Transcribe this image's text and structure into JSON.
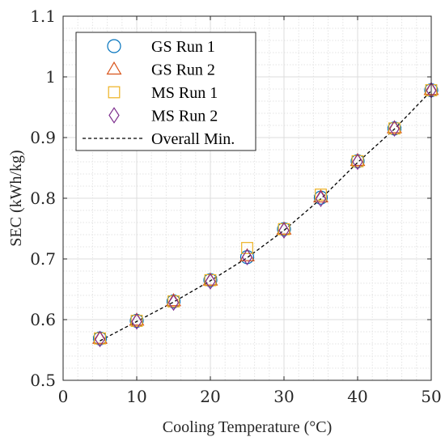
{
  "chart_data": {
    "type": "scatter",
    "xlabel": "Cooling Temperature (°C)",
    "ylabel": "SEC (kWh/kg)",
    "xlim": [
      0,
      50
    ],
    "ylim": [
      0.5,
      1.1
    ],
    "xticks": [
      "0",
      "10",
      "20",
      "30",
      "40",
      "50"
    ],
    "yticks": [
      "0.5",
      "0.6",
      "0.7",
      "0.8",
      "0.9",
      "1",
      "1.1"
    ],
    "grid": "on (major and minor)",
    "legend_position": "top-left",
    "x": [
      5,
      10,
      15,
      20,
      25,
      30,
      35,
      40,
      45,
      50
    ],
    "series": [
      {
        "name": "GS Run 1",
        "marker": "circle",
        "color": "#0072BD",
        "values": [
          0.569,
          0.598,
          0.63,
          0.665,
          0.703,
          0.749,
          0.801,
          0.861,
          0.915,
          0.978
        ]
      },
      {
        "name": "GS Run 2",
        "marker": "triangle",
        "color": "#D95319",
        "values": [
          0.569,
          0.599,
          0.631,
          0.665,
          0.705,
          0.749,
          0.802,
          0.862,
          0.916,
          0.979
        ]
      },
      {
        "name": "MS Run 1",
        "marker": "square",
        "color": "#EDB120",
        "values": [
          0.569,
          0.598,
          0.63,
          0.665,
          0.718,
          0.749,
          0.806,
          0.861,
          0.915,
          0.978
        ]
      },
      {
        "name": "MS Run 2",
        "marker": "diamond",
        "color": "#7E2F8E",
        "values": [
          0.568,
          0.597,
          0.628,
          0.663,
          0.703,
          0.747,
          0.799,
          0.86,
          0.915,
          0.978
        ]
      },
      {
        "name": "Overall Min.",
        "marker": "dashed-line",
        "color": "#000000",
        "values": [
          0.565,
          0.597,
          0.629,
          0.664,
          0.702,
          0.747,
          0.799,
          0.859,
          0.914,
          0.977
        ]
      }
    ]
  }
}
